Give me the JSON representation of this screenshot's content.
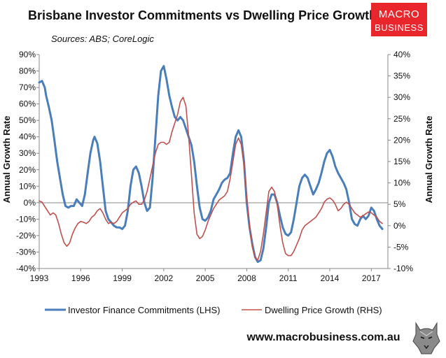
{
  "chart_data": {
    "type": "line",
    "title": "Brisbane Investor Commitments vs Dwelling Price Growth",
    "subtitle": "Sources: ABS; CoreLogic",
    "xlabel": "",
    "ylabel_left": "Annual Growth Rate",
    "ylabel_right": "Annual Growth Rate",
    "xlim": [
      1993,
      2018.2
    ],
    "ylim_left": [
      -40,
      90
    ],
    "ylim_right": [
      -10,
      40
    ],
    "x_ticks": [
      1993,
      1996,
      1999,
      2002,
      2005,
      2008,
      2011,
      2014,
      2017
    ],
    "x_tick_labels": [
      "1993",
      "1996",
      "1999",
      "2002",
      "2005",
      "2008",
      "2011",
      "2014",
      "2017"
    ],
    "y_left_ticks": [
      -40,
      -30,
      -20,
      -10,
      0,
      10,
      20,
      30,
      40,
      50,
      60,
      70,
      80,
      90
    ],
    "y_left_tick_labels": [
      "-40%",
      "-30%",
      "-20%",
      "-10%",
      "0%",
      "10%",
      "20%",
      "30%",
      "40%",
      "50%",
      "60%",
      "70%",
      "80%",
      "90%"
    ],
    "y_right_ticks": [
      -10,
      -5,
      0,
      5,
      10,
      15,
      20,
      25,
      30,
      35,
      40
    ],
    "y_right_tick_labels": [
      "-10%",
      "-5%",
      "0%",
      "5%",
      "10%",
      "15%",
      "20%",
      "25%",
      "30%",
      "35%",
      "40%"
    ],
    "series": [
      {
        "name": "Investor Finance Commitments (LHS)",
        "axis": "left",
        "color": "#4a7ebb",
        "points": [
          [
            1993.0,
            73
          ],
          [
            1993.2,
            74
          ],
          [
            1993.4,
            70
          ],
          [
            1993.5,
            65
          ],
          [
            1993.7,
            58
          ],
          [
            1993.9,
            50
          ],
          [
            1994.1,
            38
          ],
          [
            1994.3,
            25
          ],
          [
            1994.5,
            15
          ],
          [
            1994.7,
            5
          ],
          [
            1994.9,
            -2
          ],
          [
            1995.1,
            -3
          ],
          [
            1995.3,
            -2
          ],
          [
            1995.5,
            -2
          ],
          [
            1995.7,
            2
          ],
          [
            1995.9,
            0
          ],
          [
            1996.1,
            -2
          ],
          [
            1996.3,
            5
          ],
          [
            1996.5,
            18
          ],
          [
            1996.7,
            30
          ],
          [
            1996.9,
            38
          ],
          [
            1997.0,
            40
          ],
          [
            1997.2,
            36
          ],
          [
            1997.4,
            25
          ],
          [
            1997.6,
            10
          ],
          [
            1997.8,
            -5
          ],
          [
            1998.0,
            -10
          ],
          [
            1998.2,
            -12
          ],
          [
            1998.4,
            -14
          ],
          [
            1998.6,
            -15
          ],
          [
            1998.8,
            -15
          ],
          [
            1999.0,
            -16
          ],
          [
            1999.2,
            -14
          ],
          [
            1999.4,
            -5
          ],
          [
            1999.6,
            10
          ],
          [
            1999.8,
            20
          ],
          [
            2000.0,
            22
          ],
          [
            2000.2,
            18
          ],
          [
            2000.4,
            10
          ],
          [
            2000.6,
            0
          ],
          [
            2000.8,
            -5
          ],
          [
            2001.0,
            -3
          ],
          [
            2001.2,
            15
          ],
          [
            2001.4,
            40
          ],
          [
            2001.6,
            65
          ],
          [
            2001.8,
            80
          ],
          [
            2002.0,
            83
          ],
          [
            2002.2,
            75
          ],
          [
            2002.4,
            65
          ],
          [
            2002.6,
            58
          ],
          [
            2002.8,
            52
          ],
          [
            2003.0,
            50
          ],
          [
            2003.2,
            52
          ],
          [
            2003.4,
            50
          ],
          [
            2003.6,
            45
          ],
          [
            2003.8,
            40
          ],
          [
            2004.0,
            35
          ],
          [
            2004.2,
            25
          ],
          [
            2004.4,
            10
          ],
          [
            2004.6,
            -3
          ],
          [
            2004.8,
            -10
          ],
          [
            2005.0,
            -11
          ],
          [
            2005.2,
            -9
          ],
          [
            2005.4,
            -5
          ],
          [
            2005.6,
            2
          ],
          [
            2005.8,
            5
          ],
          [
            2006.0,
            8
          ],
          [
            2006.2,
            12
          ],
          [
            2006.4,
            14
          ],
          [
            2006.6,
            15
          ],
          [
            2006.8,
            18
          ],
          [
            2007.0,
            30
          ],
          [
            2007.2,
            40
          ],
          [
            2007.4,
            44
          ],
          [
            2007.6,
            40
          ],
          [
            2007.8,
            25
          ],
          [
            2008.0,
            0
          ],
          [
            2008.2,
            -15
          ],
          [
            2008.4,
            -25
          ],
          [
            2008.6,
            -33
          ],
          [
            2008.8,
            -36
          ],
          [
            2009.0,
            -35
          ],
          [
            2009.2,
            -28
          ],
          [
            2009.4,
            -15
          ],
          [
            2009.6,
            0
          ],
          [
            2009.8,
            5
          ],
          [
            2010.0,
            5
          ],
          [
            2010.2,
            0
          ],
          [
            2010.4,
            -8
          ],
          [
            2010.6,
            -15
          ],
          [
            2010.8,
            -19
          ],
          [
            2011.0,
            -20
          ],
          [
            2011.2,
            -18
          ],
          [
            2011.4,
            -10
          ],
          [
            2011.6,
            0
          ],
          [
            2011.8,
            10
          ],
          [
            2012.0,
            15
          ],
          [
            2012.2,
            17
          ],
          [
            2012.4,
            15
          ],
          [
            2012.6,
            10
          ],
          [
            2012.8,
            5
          ],
          [
            2013.0,
            8
          ],
          [
            2013.2,
            12
          ],
          [
            2013.4,
            18
          ],
          [
            2013.6,
            25
          ],
          [
            2013.8,
            30
          ],
          [
            2014.0,
            32
          ],
          [
            2014.2,
            28
          ],
          [
            2014.4,
            22
          ],
          [
            2014.6,
            18
          ],
          [
            2014.8,
            15
          ],
          [
            2015.0,
            12
          ],
          [
            2015.2,
            8
          ],
          [
            2015.4,
            0
          ],
          [
            2015.6,
            -10
          ],
          [
            2015.8,
            -13
          ],
          [
            2016.0,
            -14
          ],
          [
            2016.2,
            -10
          ],
          [
            2016.4,
            -8
          ],
          [
            2016.6,
            -10
          ],
          [
            2016.8,
            -8
          ],
          [
            2017.0,
            -3
          ],
          [
            2017.2,
            -5
          ],
          [
            2017.4,
            -10
          ],
          [
            2017.6,
            -14
          ],
          [
            2017.8,
            -16
          ]
        ]
      },
      {
        "name": "Dwelling Price Growth (RHS)",
        "axis": "right",
        "color": "#c0504d",
        "points": [
          [
            1993.0,
            5.8
          ],
          [
            1993.2,
            5.5
          ],
          [
            1993.4,
            4.5
          ],
          [
            1993.6,
            3.5
          ],
          [
            1993.8,
            2.5
          ],
          [
            1994.0,
            3
          ],
          [
            1994.2,
            2.5
          ],
          [
            1994.4,
            0.5
          ],
          [
            1994.6,
            -2
          ],
          [
            1994.8,
            -4
          ],
          [
            1995.0,
            -4.8
          ],
          [
            1995.2,
            -4
          ],
          [
            1995.4,
            -2
          ],
          [
            1995.6,
            -0.5
          ],
          [
            1995.8,
            0.5
          ],
          [
            1996.0,
            1
          ],
          [
            1996.2,
            0.8
          ],
          [
            1996.4,
            0.5
          ],
          [
            1996.6,
            1
          ],
          [
            1996.8,
            2
          ],
          [
            1997.0,
            2.5
          ],
          [
            1997.2,
            3.5
          ],
          [
            1997.4,
            4
          ],
          [
            1997.6,
            3
          ],
          [
            1997.8,
            1.5
          ],
          [
            1998.0,
            0.5
          ],
          [
            1998.2,
            0.8
          ],
          [
            1998.4,
            0.5
          ],
          [
            1998.6,
            1
          ],
          [
            1998.8,
            2
          ],
          [
            1999.0,
            3
          ],
          [
            1999.2,
            3.5
          ],
          [
            1999.4,
            4
          ],
          [
            1999.6,
            5
          ],
          [
            1999.8,
            5.5
          ],
          [
            2000.0,
            5.8
          ],
          [
            2000.2,
            5
          ],
          [
            2000.4,
            5
          ],
          [
            2000.6,
            6
          ],
          [
            2000.8,
            8
          ],
          [
            2001.0,
            11
          ],
          [
            2001.2,
            14
          ],
          [
            2001.4,
            17
          ],
          [
            2001.6,
            19
          ],
          [
            2001.8,
            19.5
          ],
          [
            2002.0,
            19.5
          ],
          [
            2002.2,
            19
          ],
          [
            2002.4,
            19.5
          ],
          [
            2002.6,
            22
          ],
          [
            2002.8,
            24
          ],
          [
            2003.0,
            26
          ],
          [
            2003.2,
            29
          ],
          [
            2003.4,
            30
          ],
          [
            2003.6,
            28
          ],
          [
            2003.8,
            21
          ],
          [
            2004.0,
            12
          ],
          [
            2004.2,
            3
          ],
          [
            2004.4,
            -2
          ],
          [
            2004.6,
            -3
          ],
          [
            2004.8,
            -2.5
          ],
          [
            2005.0,
            -1
          ],
          [
            2005.2,
            1
          ],
          [
            2005.4,
            2.5
          ],
          [
            2005.6,
            4
          ],
          [
            2005.8,
            5
          ],
          [
            2006.0,
            6
          ],
          [
            2006.2,
            6.5
          ],
          [
            2006.4,
            7
          ],
          [
            2006.6,
            8
          ],
          [
            2006.8,
            11
          ],
          [
            2007.0,
            15
          ],
          [
            2007.2,
            19
          ],
          [
            2007.4,
            20.5
          ],
          [
            2007.6,
            19
          ],
          [
            2007.8,
            14
          ],
          [
            2008.0,
            7
          ],
          [
            2008.2,
            0
          ],
          [
            2008.4,
            -5
          ],
          [
            2008.6,
            -7.5
          ],
          [
            2008.8,
            -8
          ],
          [
            2009.0,
            -6
          ],
          [
            2009.2,
            -2
          ],
          [
            2009.4,
            3
          ],
          [
            2009.6,
            8
          ],
          [
            2009.8,
            9
          ],
          [
            2010.0,
            8
          ],
          [
            2010.2,
            5
          ],
          [
            2010.4,
            0
          ],
          [
            2010.6,
            -4
          ],
          [
            2010.8,
            -6.5
          ],
          [
            2011.0,
            -7
          ],
          [
            2011.2,
            -7
          ],
          [
            2011.4,
            -6
          ],
          [
            2011.6,
            -4.5
          ],
          [
            2011.8,
            -3
          ],
          [
            2012.0,
            -1
          ],
          [
            2012.2,
            0
          ],
          [
            2012.4,
            0.5
          ],
          [
            2012.6,
            1
          ],
          [
            2012.8,
            1.5
          ],
          [
            2013.0,
            2
          ],
          [
            2013.2,
            3
          ],
          [
            2013.4,
            4
          ],
          [
            2013.6,
            5.5
          ],
          [
            2013.8,
            6.2
          ],
          [
            2014.0,
            6.5
          ],
          [
            2014.2,
            6
          ],
          [
            2014.4,
            5
          ],
          [
            2014.6,
            3.5
          ],
          [
            2014.8,
            4
          ],
          [
            2015.0,
            5
          ],
          [
            2015.2,
            5.5
          ],
          [
            2015.4,
            5
          ],
          [
            2015.6,
            4
          ],
          [
            2015.8,
            3
          ],
          [
            2016.0,
            2.5
          ],
          [
            2016.2,
            2
          ],
          [
            2016.4,
            2.3
          ],
          [
            2016.6,
            2.8
          ],
          [
            2016.8,
            3.2
          ],
          [
            2017.0,
            3
          ],
          [
            2017.2,
            2.5
          ],
          [
            2017.4,
            2
          ],
          [
            2017.6,
            1
          ],
          [
            2017.8,
            0.5
          ]
        ]
      }
    ],
    "legend_position": "bottom",
    "grid": false
  },
  "branding": {
    "logo_line1": "MACRO",
    "logo_line2": "BUSINESS",
    "logo_color": "#e8262b",
    "website": "www.macrobusiness.com.au",
    "mascot_icon": "wolf-icon"
  }
}
